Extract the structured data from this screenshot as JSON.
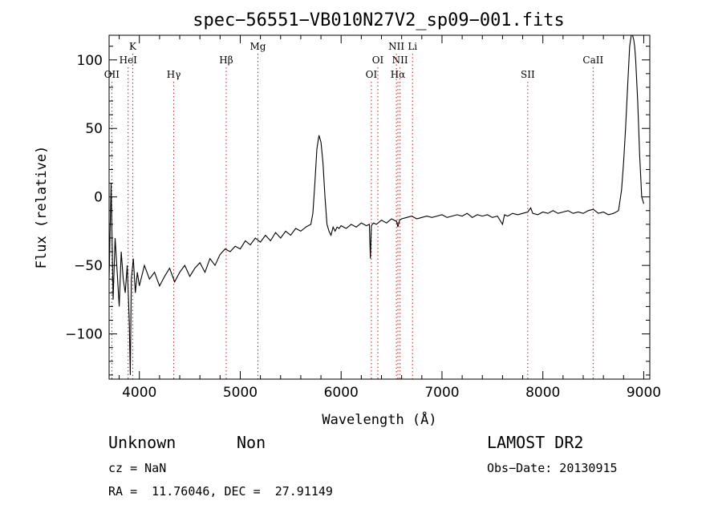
{
  "chart_data": {
    "type": "line",
    "title": "spec−56551−VB010N27V2_sp09−001.fits",
    "xlabel": "Wavelength (Å)",
    "ylabel": "Flux (relative)",
    "xlim": [
      3700,
      9060
    ],
    "ylim": [
      -133,
      118
    ],
    "xticks": [
      4000,
      5000,
      6000,
      7000,
      8000,
      9000
    ],
    "yticks": [
      -100,
      -50,
      0,
      50,
      100
    ],
    "ytick_labels": [
      "−100",
      "−50",
      "0",
      "50",
      "100"
    ],
    "grid": false,
    "spectrum": {
      "x": [
        3700,
        3720,
        3740,
        3760,
        3780,
        3800,
        3820,
        3840,
        3860,
        3880,
        3900,
        3910,
        3920,
        3940,
        3960,
        3980,
        4000,
        4050,
        4100,
        4150,
        4200,
        4250,
        4300,
        4350,
        4400,
        4450,
        4500,
        4550,
        4600,
        4650,
        4700,
        4750,
        4800,
        4850,
        4900,
        4950,
        5000,
        5050,
        5100,
        5150,
        5200,
        5250,
        5300,
        5350,
        5400,
        5450,
        5500,
        5550,
        5600,
        5650,
        5700,
        5720,
        5740,
        5760,
        5780,
        5800,
        5820,
        5840,
        5860,
        5880,
        5900,
        5920,
        5940,
        5960,
        5980,
        6000,
        6050,
        6100,
        6150,
        6200,
        6250,
        6280,
        6290,
        6300,
        6320,
        6350,
        6400,
        6450,
        6500,
        6550,
        6563,
        6580,
        6600,
        6650,
        6700,
        6750,
        6800,
        6850,
        6900,
        6950,
        7000,
        7050,
        7100,
        7150,
        7200,
        7250,
        7300,
        7350,
        7400,
        7450,
        7500,
        7550,
        7600,
        7620,
        7650,
        7700,
        7750,
        7800,
        7850,
        7880,
        7900,
        7950,
        8000,
        8050,
        8100,
        8150,
        8200,
        8250,
        8300,
        8350,
        8400,
        8450,
        8500,
        8550,
        8600,
        8650,
        8700,
        8750,
        8780,
        8800,
        8820,
        8840,
        8860,
        8880,
        8900,
        8910,
        8920,
        8940,
        8960,
        8980,
        9000
      ],
      "y": [
        -60,
        10,
        -75,
        -30,
        -55,
        -80,
        -40,
        -60,
        -70,
        -50,
        -90,
        -130,
        -60,
        -45,
        -70,
        -55,
        -65,
        -50,
        -60,
        -55,
        -65,
        -58,
        -52,
        -62,
        -55,
        -50,
        -58,
        -52,
        -48,
        -55,
        -45,
        -50,
        -42,
        -38,
        -40,
        -36,
        -38,
        -32,
        -35,
        -30,
        -33,
        -28,
        -32,
        -26,
        -30,
        -25,
        -28,
        -23,
        -25,
        -22,
        -20,
        -12,
        10,
        35,
        45,
        40,
        25,
        0,
        -20,
        -25,
        -28,
        -22,
        -25,
        -22,
        -23,
        -21,
        -23,
        -20,
        -22,
        -19,
        -21,
        -20,
        -45,
        -21,
        -19,
        -20,
        -17,
        -19,
        -16,
        -18,
        -22,
        -17,
        -16,
        -15,
        -14,
        -16,
        -15,
        -14,
        -15,
        -14,
        -13,
        -15,
        -14,
        -13,
        -14,
        -12,
        -15,
        -13,
        -14,
        -13,
        -15,
        -14,
        -20,
        -13,
        -14,
        -12,
        -13,
        -12,
        -11,
        -8,
        -12,
        -13,
        -11,
        -12,
        -10,
        -12,
        -11,
        -10,
        -12,
        -11,
        -12,
        -10,
        -9,
        -12,
        -11,
        -13,
        -12,
        -10,
        5,
        25,
        50,
        80,
        110,
        120,
        115,
        110,
        100,
        70,
        30,
        0,
        -5
      ]
    },
    "lines": [
      {
        "label": "OII",
        "x": 3727,
        "row": 3
      },
      {
        "label": "K",
        "x": 3934,
        "row": 1
      },
      {
        "label": "HeI",
        "x": 3889,
        "row": 2
      },
      {
        "label": "Hγ",
        "x": 4341,
        "row": 3
      },
      {
        "label": "Hβ",
        "x": 4861,
        "row": 2
      },
      {
        "label": "Mg",
        "x": 5175,
        "row": 1
      },
      {
        "label": "OI",
        "x": 6300,
        "row": 3
      },
      {
        "label": "OI",
        "x": 6364,
        "row": 2
      },
      {
        "label": "NII",
        "x": 6548,
        "row": 1
      },
      {
        "label": "Hα",
        "x": 6563,
        "row": 3
      },
      {
        "label": "NII",
        "x": 6584,
        "row": 2
      },
      {
        "label": "Li",
        "x": 6708,
        "row": 1
      },
      {
        "label": "SII",
        "x": 7850,
        "row": 3
      },
      {
        "label": "CaII",
        "x": 8498,
        "row": 2
      }
    ]
  },
  "info": {
    "class_text": "Unknown",
    "subclass_text": "Non",
    "survey_text": "LAMOST DR2",
    "cz_text": "cz = NaN",
    "obsdate_text": "Obs−Date: 20130915",
    "coords_text": "RA =  11.76046, DEC =  27.91149"
  }
}
